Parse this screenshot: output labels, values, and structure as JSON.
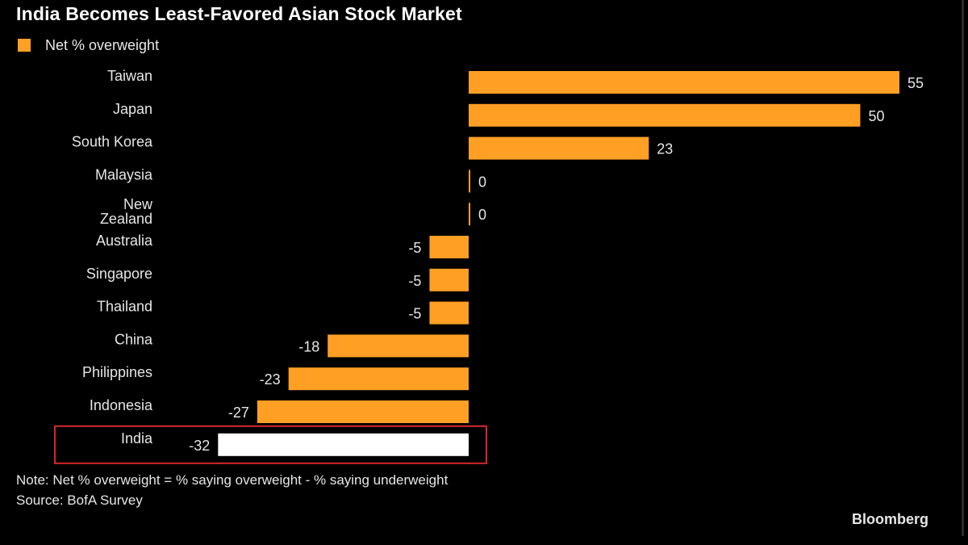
{
  "header": {
    "title": "India Becomes Least-Favored Asian Stock Market"
  },
  "legend": {
    "label": "Net % overweight",
    "color": "#ff9f24"
  },
  "chart_data": {
    "type": "bar",
    "orientation": "horizontal",
    "categories": [
      "Taiwan",
      "Japan",
      "South Korea",
      "Malaysia",
      "New Zealand",
      "Australia",
      "Singapore",
      "Thailand",
      "China",
      "Philippines",
      "Indonesia",
      "India"
    ],
    "series": [
      {
        "name": "Net % overweight",
        "values": [
          55,
          50,
          23,
          0,
          0,
          -5,
          -5,
          -5,
          -18,
          -23,
          -27,
          -32
        ]
      }
    ],
    "title": "India Becomes Least-Favored Asian Stock Market",
    "xlim": [
      -32,
      55
    ],
    "bar_color": "#ff9f24",
    "highlight": {
      "category": "India",
      "bar_color": "#ffffff",
      "box_color": "#d7262b"
    },
    "grid": false,
    "legend_position": "top-left"
  },
  "footer": {
    "note": "Note: Net % overweight = % saying overweight - % saying underweight",
    "source": "Source: BofA Survey",
    "brand": "Bloomberg"
  }
}
